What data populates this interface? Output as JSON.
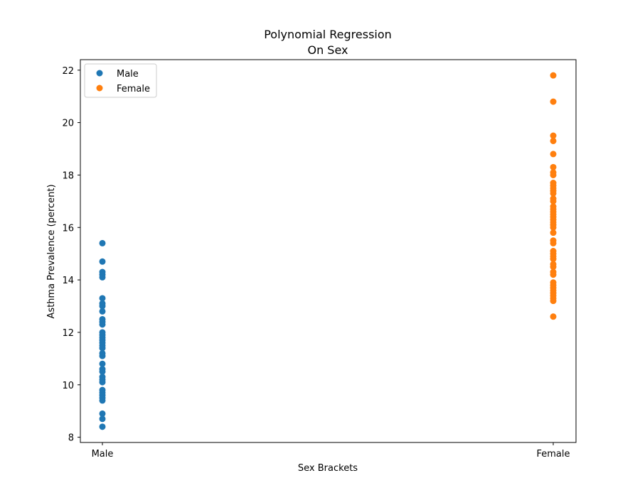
{
  "chart_data": {
    "type": "scatter",
    "title": "Polynomial Regression",
    "subtitle": "On Sex",
    "xlabel": "Sex Brackets",
    "ylabel": "Asthma Prevalence (percent)",
    "categories": [
      "Male",
      "Female"
    ],
    "ylim": [
      7.8,
      22.4
    ],
    "yticks": [
      8,
      10,
      12,
      14,
      16,
      18,
      20,
      22
    ],
    "grid": false,
    "legend_position": "top-left",
    "series": [
      {
        "name": "Male",
        "color": "#1f77b4",
        "x": "Male",
        "values": [
          15.4,
          14.7,
          14.3,
          14.2,
          14.1,
          13.3,
          13.1,
          13.0,
          12.8,
          12.5,
          12.4,
          12.3,
          12.0,
          11.9,
          11.8,
          11.7,
          11.6,
          11.5,
          11.4,
          11.2,
          11.1,
          10.8,
          10.6,
          10.5,
          10.3,
          10.2,
          10.1,
          9.8,
          9.7,
          9.6,
          9.5,
          9.4,
          8.9,
          8.7,
          8.4
        ]
      },
      {
        "name": "Female",
        "color": "#ff7f0e",
        "x": "Female",
        "values": [
          21.8,
          20.8,
          19.5,
          19.3,
          18.8,
          18.3,
          18.1,
          18.0,
          17.7,
          17.6,
          17.5,
          17.4,
          17.3,
          17.1,
          17.0,
          16.8,
          16.7,
          16.6,
          16.5,
          16.4,
          16.3,
          16.2,
          16.1,
          16.0,
          15.8,
          15.5,
          15.4,
          15.1,
          15.0,
          14.9,
          14.8,
          14.6,
          14.5,
          14.3,
          14.2,
          13.9,
          13.8,
          13.7,
          13.6,
          13.5,
          13.4,
          13.3,
          13.2,
          12.6
        ]
      }
    ]
  }
}
